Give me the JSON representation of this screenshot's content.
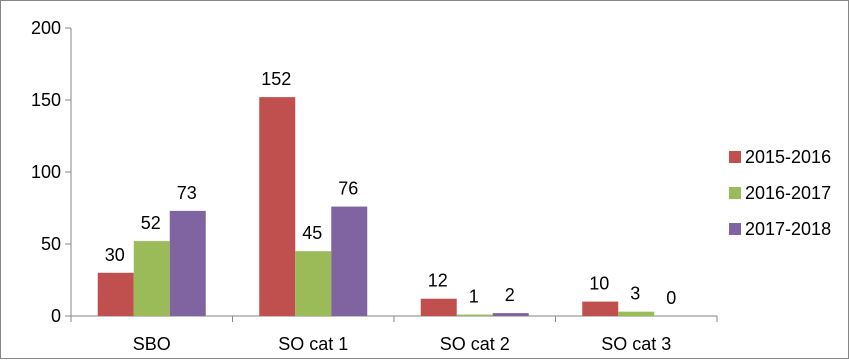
{
  "chart_data": {
    "type": "bar",
    "categories": [
      "SBO",
      "SO cat 1",
      "SO cat 2",
      "SO cat 3"
    ],
    "series": [
      {
        "name": "2015-2016",
        "values": [
          30,
          152,
          12,
          10
        ],
        "color": "#C0504D"
      },
      {
        "name": "2016-2017",
        "values": [
          52,
          45,
          1,
          3
        ],
        "color": "#9BBB59"
      },
      {
        "name": "2017-2018",
        "values": [
          73,
          76,
          2,
          0
        ],
        "color": "#8064A2"
      }
    ],
    "ylim": [
      0,
      200
    ],
    "yticks": [
      0,
      50,
      100,
      150,
      200
    ],
    "grid": false,
    "legend_position": "right",
    "data_labels": true
  }
}
